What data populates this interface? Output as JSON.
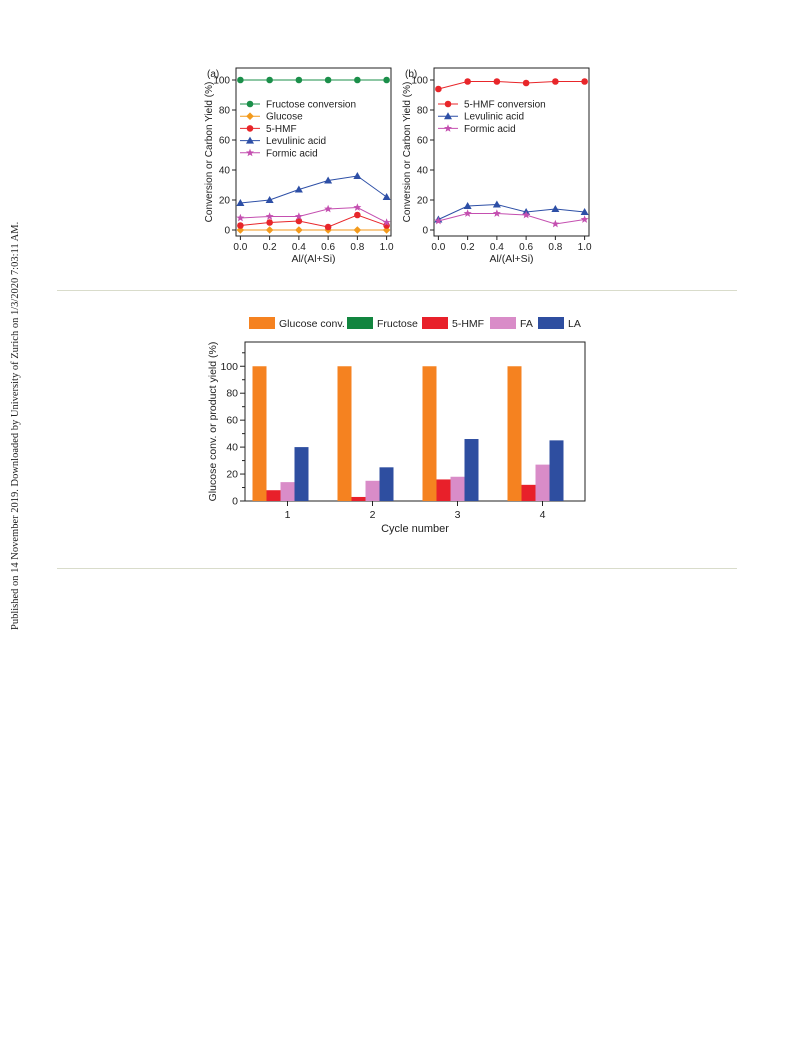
{
  "side_note": "Published on 14 November 2019. Downloaded by University of Zurich on 1/3/2020 7:03:11 AM.",
  "chart_data": [
    {
      "type": "line",
      "panel_label": "(a)",
      "xlabel": "Al/(Al+Si)",
      "ylabel": "Conversion or Carbon Yield (%)",
      "x": [
        0.0,
        0.2,
        0.4,
        0.6,
        0.8,
        1.0
      ],
      "x_ticks": [
        "0.0",
        "0.2",
        "0.4",
        "0.6",
        "0.8",
        "1.0"
      ],
      "y_ticks": [
        "0",
        "20",
        "40",
        "60",
        "80",
        "100"
      ],
      "xlim": [
        -0.03,
        1.03
      ],
      "ylim": [
        -4,
        108
      ],
      "legend_position": "top-left",
      "series": [
        {
          "name": "Fructose conversion",
          "color": "#1b8f4a",
          "marker": "circle",
          "values": [
            100,
            100,
            100,
            100,
            100,
            100
          ]
        },
        {
          "name": "Glucose",
          "color": "#f39a1c",
          "marker": "diamond",
          "values": [
            0,
            0,
            0,
            0,
            0,
            0
          ]
        },
        {
          "name": "5-HMF",
          "color": "#e8262a",
          "marker": "circle",
          "values": [
            3,
            5,
            6,
            2,
            10,
            3
          ]
        },
        {
          "name": "Levulinic acid",
          "color": "#2d4fa6",
          "marker": "triangle",
          "values": [
            18,
            20,
            27,
            33,
            36,
            22
          ]
        },
        {
          "name": "Formic acid",
          "color": "#c44fb0",
          "marker": "star",
          "values": [
            8,
            9,
            9,
            14,
            15,
            5
          ]
        }
      ]
    },
    {
      "type": "line",
      "panel_label": "(b)",
      "xlabel": "Al/(Al+Si)",
      "ylabel": "Conversion or Carbon Yield (%)",
      "x": [
        0.0,
        0.2,
        0.4,
        0.6,
        0.8,
        1.0
      ],
      "x_ticks": [
        "0.0",
        "0.2",
        "0.4",
        "0.6",
        "0.8",
        "1.0"
      ],
      "y_ticks": [
        "0",
        "20",
        "40",
        "60",
        "80",
        "100"
      ],
      "xlim": [
        -0.03,
        1.03
      ],
      "ylim": [
        -4,
        108
      ],
      "legend_position": "top-left",
      "series": [
        {
          "name": "5-HMF conversion",
          "color": "#e8262a",
          "marker": "circle",
          "values": [
            94,
            99,
            99,
            98,
            99,
            99
          ]
        },
        {
          "name": "Levulinic acid",
          "color": "#2d4fa6",
          "marker": "triangle",
          "values": [
            7,
            16,
            17,
            12,
            14,
            12
          ]
        },
        {
          "name": "Formic acid",
          "color": "#c44fb0",
          "marker": "star",
          "values": [
            6,
            11,
            11,
            10,
            4,
            7
          ]
        }
      ]
    },
    {
      "type": "bar",
      "xlabel": "Cycle number",
      "ylabel": "Glucose conv. or product yield (%)",
      "categories": [
        "1",
        "2",
        "3",
        "4"
      ],
      "y_ticks": [
        "0",
        "20",
        "40",
        "60",
        "80",
        "100"
      ],
      "ylim": [
        0,
        118
      ],
      "legend_position": "top",
      "series": [
        {
          "name": "Glucose conv.",
          "color": "#f58220",
          "values": [
            100,
            100,
            100,
            100
          ]
        },
        {
          "name": "Fructose",
          "color": "#12853f",
          "values": [
            0,
            0,
            0,
            0
          ]
        },
        {
          "name": "5-HMF",
          "color": "#e8202a",
          "values": [
            8,
            3,
            16,
            12
          ]
        },
        {
          "name": "FA",
          "color": "#d98cc8",
          "values": [
            14,
            15,
            18,
            27
          ]
        },
        {
          "name": "LA",
          "color": "#2e4ea0",
          "values": [
            40,
            25,
            46,
            45
          ]
        }
      ]
    }
  ]
}
